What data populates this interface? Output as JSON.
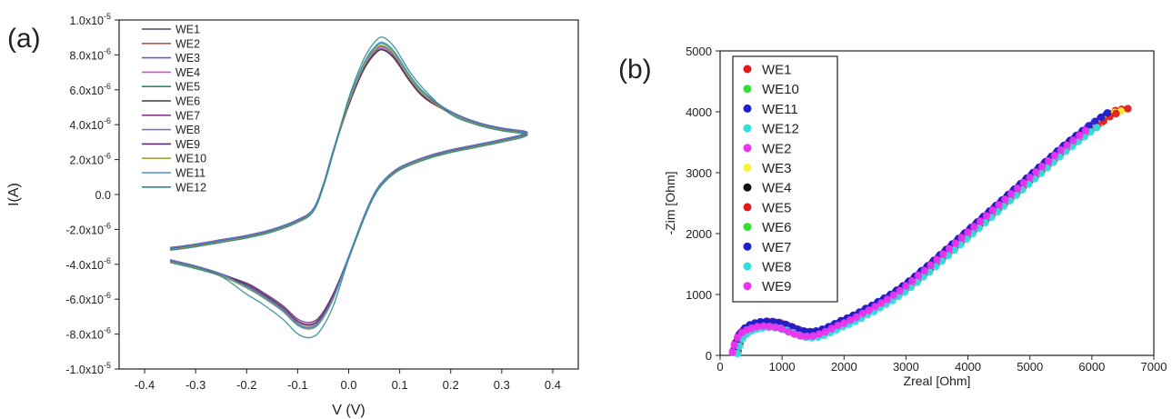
{
  "panel_labels": {
    "a": "(a)",
    "b": "(b)"
  },
  "chart_data": [
    {
      "type": "line",
      "panel": "(a)",
      "xlabel": "V (V)",
      "ylabel": "I(A)",
      "xlim": [
        -0.45,
        0.45
      ],
      "ylim": [
        -1e-05,
        1e-05
      ],
      "x_ticks": [
        -0.4,
        -0.3,
        -0.2,
        -0.1,
        0.0,
        0.1,
        0.2,
        0.3,
        0.4
      ],
      "x_tick_labels": [
        "-0.4",
        "-0.3",
        "-0.2",
        "-0.1",
        "0.0",
        "0.1",
        "0.2",
        "0.3",
        "0.4"
      ],
      "y_ticks": [
        1e-05,
        8e-06,
        6e-06,
        4e-06,
        2e-06,
        0.0,
        -2e-06,
        -4e-06,
        -6e-06,
        -8e-06,
        -1e-05
      ],
      "y_tick_labels": [
        {
          "m": "1.0x10",
          "e": "-5"
        },
        {
          "m": "8.0x10",
          "e": "-6"
        },
        {
          "m": "6.0x10",
          "e": "-6"
        },
        {
          "m": "4.0x10",
          "e": "-6"
        },
        {
          "m": "2.0x10",
          "e": "-6"
        },
        {
          "m": "0.0",
          "e": ""
        },
        {
          "m": "-2.0x10",
          "e": "-6"
        },
        {
          "m": "-4.0x10",
          "e": "-6"
        },
        {
          "m": "-6.0x10",
          "e": "-6"
        },
        {
          "m": "-8.0x10",
          "e": "-6"
        },
        {
          "m": "-1.0x10",
          "e": "-5"
        }
      ],
      "grid": false,
      "legend_position": "top-left",
      "base_curve": {
        "upper": [
          [
            -0.35,
            -3.1e-06
          ],
          [
            -0.3,
            -2.9e-06
          ],
          [
            -0.25,
            -2.65e-06
          ],
          [
            -0.2,
            -2.4e-06
          ],
          [
            -0.15,
            -2.05e-06
          ],
          [
            -0.1,
            -1.5e-06
          ],
          [
            -0.07,
            -9e-07
          ],
          [
            -0.05,
            5e-07
          ],
          [
            -0.03,
            2.5e-06
          ],
          [
            0.0,
            5.2e-06
          ],
          [
            0.03,
            7.3e-06
          ],
          [
            0.055,
            8.3e-06
          ],
          [
            0.07,
            8.4e-06
          ],
          [
            0.09,
            7.9e-06
          ],
          [
            0.12,
            6.6e-06
          ],
          [
            0.15,
            5.6e-06
          ],
          [
            0.2,
            4.7e-06
          ],
          [
            0.25,
            4.1e-06
          ],
          [
            0.3,
            3.75e-06
          ],
          [
            0.35,
            3.5e-06
          ]
        ],
        "lower": [
          [
            0.35,
            3.5e-06
          ],
          [
            0.3,
            3.1e-06
          ],
          [
            0.25,
            2.8e-06
          ],
          [
            0.2,
            2.5e-06
          ],
          [
            0.15,
            2.1e-06
          ],
          [
            0.1,
            1.5e-06
          ],
          [
            0.07,
            8e-07
          ],
          [
            0.05,
            0.0
          ],
          [
            0.03,
            -1.3e-06
          ],
          [
            0.0,
            -3.6e-06
          ],
          [
            -0.03,
            -5.8e-06
          ],
          [
            -0.055,
            -7.1e-06
          ],
          [
            -0.075,
            -7.5e-06
          ],
          [
            -0.1,
            -7.3e-06
          ],
          [
            -0.13,
            -6.5e-06
          ],
          [
            -0.17,
            -5.7e-06
          ],
          [
            -0.2,
            -5.2e-06
          ],
          [
            -0.25,
            -4.6e-06
          ],
          [
            -0.3,
            -4.15e-06
          ],
          [
            -0.35,
            -3.8e-06
          ]
        ]
      },
      "series": [
        {
          "name": "WE1",
          "color": "#4a4a6a",
          "y_offset": 0.0,
          "peak_scale": 1.0
        },
        {
          "name": "WE2",
          "color": "#c0504d",
          "y_offset": -5e-08,
          "peak_scale": 0.99
        },
        {
          "name": "WE3",
          "color": "#6a5acd",
          "y_offset": 3e-08,
          "peak_scale": 1.0
        },
        {
          "name": "WE4",
          "color": "#d24fd2",
          "y_offset": -8e-08,
          "peak_scale": 1.01
        },
        {
          "name": "WE5",
          "color": "#2e8b57",
          "y_offset": 5e-08,
          "peak_scale": 1.02
        },
        {
          "name": "WE6",
          "color": "#3d3d3d",
          "y_offset": -2e-08,
          "peak_scale": 0.99
        },
        {
          "name": "WE7",
          "color": "#8b3a8b",
          "y_offset": 6e-08,
          "peak_scale": 1.0
        },
        {
          "name": "WE8",
          "color": "#7a7aa0",
          "y_offset": -4e-08,
          "peak_scale": 1.01
        },
        {
          "name": "WE9",
          "color": "#5b2c6f",
          "y_offset": 2e-08,
          "peak_scale": 0.98
        },
        {
          "name": "WE10",
          "color": "#9aa63b",
          "y_offset": -6e-08,
          "peak_scale": 1.02
        },
        {
          "name": "WE11",
          "color": "#4a90d9",
          "y_offset": 4e-08,
          "peak_scale": 1.03
        },
        {
          "name": "WE12",
          "color": "#2a8c8c",
          "y_offset": -1e-07,
          "peak_scale": 1.08
        }
      ]
    },
    {
      "type": "scatter",
      "panel": "(b)",
      "xlabel": "Zreal [Ohm]",
      "ylabel": "-Zim [Ohm]",
      "xlim": [
        0,
        7000
      ],
      "ylim": [
        0,
        5000
      ],
      "x_ticks": [
        0,
        1000,
        2000,
        3000,
        4000,
        5000,
        6000,
        7000
      ],
      "y_ticks": [
        0,
        1000,
        2000,
        3000,
        4000,
        5000
      ],
      "grid": false,
      "legend_position": "top-left",
      "base_points": [
        [
          250,
          80
        ],
        [
          280,
          200
        ],
        [
          330,
          320
        ],
        [
          400,
          400
        ],
        [
          480,
          450
        ],
        [
          560,
          480
        ],
        [
          650,
          500
        ],
        [
          750,
          510
        ],
        [
          850,
          505
        ],
        [
          950,
          490
        ],
        [
          1050,
          460
        ],
        [
          1150,
          420
        ],
        [
          1250,
          380
        ],
        [
          1350,
          350
        ],
        [
          1450,
          340
        ],
        [
          1550,
          350
        ],
        [
          1650,
          380
        ],
        [
          1750,
          420
        ],
        [
          1850,
          470
        ],
        [
          1950,
          520
        ],
        [
          2050,
          560
        ],
        [
          2150,
          610
        ],
        [
          2250,
          660
        ],
        [
          2350,
          720
        ],
        [
          2450,
          770
        ],
        [
          2550,
          830
        ],
        [
          2650,
          890
        ],
        [
          2750,
          950
        ],
        [
          2850,
          1020
        ],
        [
          2950,
          1090
        ],
        [
          3050,
          1170
        ],
        [
          3150,
          1250
        ],
        [
          3250,
          1340
        ],
        [
          3350,
          1420
        ],
        [
          3450,
          1510
        ],
        [
          3550,
          1600
        ],
        [
          3650,
          1690
        ],
        [
          3750,
          1780
        ],
        [
          3850,
          1870
        ],
        [
          3950,
          1960
        ],
        [
          4050,
          2050
        ],
        [
          4150,
          2140
        ],
        [
          4250,
          2230
        ],
        [
          4350,
          2320
        ],
        [
          4450,
          2410
        ],
        [
          4550,
          2500
        ],
        [
          4650,
          2590
        ],
        [
          4750,
          2680
        ],
        [
          4850,
          2770
        ],
        [
          4950,
          2860
        ],
        [
          5050,
          2950
        ],
        [
          5150,
          3040
        ],
        [
          5250,
          3130
        ],
        [
          5350,
          3220
        ],
        [
          5450,
          3310
        ],
        [
          5550,
          3400
        ],
        [
          5650,
          3480
        ],
        [
          5750,
          3560
        ],
        [
          5850,
          3640
        ],
        [
          5950,
          3720
        ],
        [
          6050,
          3790
        ],
        [
          6150,
          3860
        ],
        [
          6250,
          3930
        ],
        [
          6350,
          3980
        ],
        [
          6450,
          4000
        ],
        [
          6550,
          4010
        ]
      ],
      "series": [
        {
          "name": "WE1",
          "color": "#e31a1c",
          "dx": 30,
          "dy": 40,
          "max_x": 6600
        },
        {
          "name": "WE10",
          "color": "#33e033",
          "dx": 0,
          "dy": -30,
          "max_x": 6200
        },
        {
          "name": "WE11",
          "color": "#1f1fd0",
          "dx": -20,
          "dy": 20,
          "max_x": 6300
        },
        {
          "name": "WE12",
          "color": "#33dddd",
          "dx": 10,
          "dy": -40,
          "max_x": 6150
        },
        {
          "name": "WE2",
          "color": "#ee33ee",
          "dx": -40,
          "dy": 0,
          "max_x": 6200
        },
        {
          "name": "WE3",
          "color": "#f5f533",
          "dx": 20,
          "dy": 10,
          "max_x": 6500
        },
        {
          "name": "WE4",
          "color": "#111111",
          "dx": -10,
          "dy": 30,
          "max_x": 5800
        },
        {
          "name": "WE5",
          "color": "#e31a1c",
          "dx": 40,
          "dy": -10,
          "max_x": 6400
        },
        {
          "name": "WE6",
          "color": "#33e033",
          "dx": -30,
          "dy": -20,
          "max_x": 5750
        },
        {
          "name": "WE7",
          "color": "#1f1fd0",
          "dx": 0,
          "dy": 50,
          "max_x": 6250
        },
        {
          "name": "WE8",
          "color": "#33dddd",
          "dx": 30,
          "dy": -50,
          "max_x": 6100
        },
        {
          "name": "WE9",
          "color": "#ee33ee",
          "dx": -50,
          "dy": -30,
          "max_x": 6000
        }
      ]
    }
  ]
}
